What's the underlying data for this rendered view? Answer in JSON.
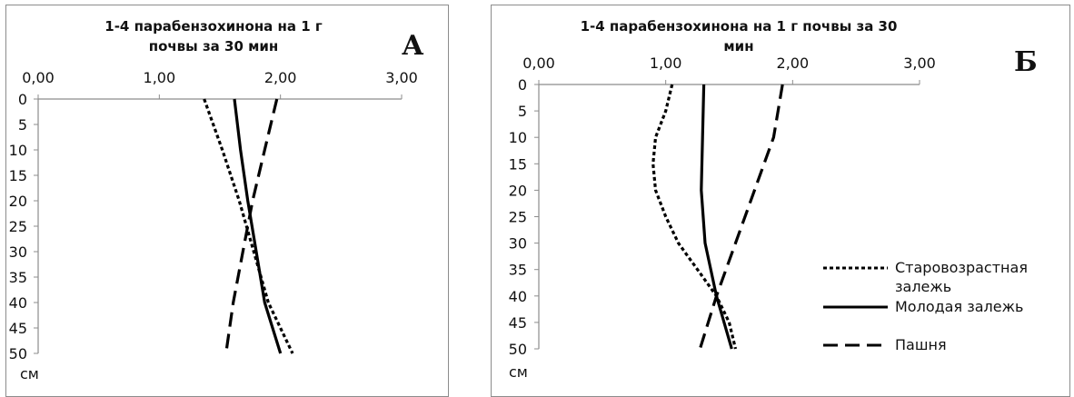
{
  "chart_data": [
    {
      "type": "line",
      "panel_label": "А",
      "title": "1-4 парабензохинона на 1 г почвы за 30 мин",
      "title_lines": [
        "1-4 парабензохинона на 1 г",
        "почвы за 30 мин"
      ],
      "x_axis": {
        "position": "top",
        "ticks": [
          "0,00",
          "1,00",
          "2,00",
          "3,00"
        ],
        "range": [
          0,
          3
        ]
      },
      "y_axis": {
        "inverted": true,
        "ticks": [
          "0",
          "5",
          "10",
          "15",
          "20",
          "25",
          "30",
          "35",
          "40",
          "45",
          "50"
        ],
        "range": [
          0,
          50
        ],
        "label": "см"
      },
      "series": [
        {
          "key": "old",
          "dash": "dotted",
          "points": [
            [
              1.37,
              0
            ],
            [
              1.52,
              10
            ],
            [
              1.66,
              20
            ],
            [
              1.78,
              30
            ],
            [
              1.9,
              40
            ],
            [
              2.1,
              50
            ]
          ]
        },
        {
          "key": "young",
          "dash": "solid",
          "points": [
            [
              1.62,
              0
            ],
            [
              1.67,
              10
            ],
            [
              1.73,
              20
            ],
            [
              1.8,
              30
            ],
            [
              1.87,
              40
            ],
            [
              2.0,
              50
            ]
          ]
        },
        {
          "key": "field",
          "dash": "dashed",
          "points": [
            [
              1.97,
              0
            ],
            [
              1.87,
              10
            ],
            [
              1.77,
              20
            ],
            [
              1.69,
              30
            ],
            [
              1.61,
              40
            ],
            [
              1.55,
              50
            ]
          ]
        }
      ]
    },
    {
      "type": "line",
      "panel_label": "Б",
      "title": "1-4 парабензохинона на 1 г почвы за 30 мин",
      "title_lines": [
        "1-4 парабензохинона на 1 г почвы за 30",
        "мин"
      ],
      "x_axis": {
        "position": "top",
        "ticks": [
          "0,00",
          "1,00",
          "2,00",
          "3,00"
        ],
        "range": [
          0,
          3
        ]
      },
      "y_axis": {
        "inverted": true,
        "ticks": [
          "0",
          "5",
          "10",
          "15",
          "20",
          "25",
          "30",
          "35",
          "40",
          "45",
          "50"
        ],
        "range": [
          0,
          50
        ],
        "label": "см"
      },
      "legend": {
        "placement": "right",
        "items": [
          {
            "key": "old",
            "dash": "dotted",
            "lines": [
              "Старовозрастная",
              "залежь"
            ]
          },
          {
            "key": "young",
            "dash": "solid",
            "lines": [
              "Молодая залежь"
            ]
          },
          {
            "key": "field",
            "dash": "dashed",
            "lines": [
              "Пашня"
            ]
          }
        ]
      },
      "series": [
        {
          "key": "old",
          "name": "Старовозрастная залежь",
          "dash": "dotted",
          "points": [
            [
              1.05,
              0
            ],
            [
              1.0,
              5
            ],
            [
              0.92,
              10
            ],
            [
              0.9,
              15
            ],
            [
              0.92,
              20
            ],
            [
              1.0,
              25
            ],
            [
              1.1,
              30
            ],
            [
              1.25,
              35
            ],
            [
              1.4,
              40
            ],
            [
              1.5,
              45
            ],
            [
              1.55,
              50
            ]
          ]
        },
        {
          "key": "young",
          "name": "Молодая залежь",
          "dash": "solid",
          "points": [
            [
              1.3,
              0
            ],
            [
              1.29,
              10
            ],
            [
              1.28,
              20
            ],
            [
              1.31,
              30
            ],
            [
              1.4,
              40
            ],
            [
              1.52,
              50
            ]
          ]
        },
        {
          "key": "field",
          "name": "Пашня",
          "dash": "dashed",
          "points": [
            [
              1.92,
              0
            ],
            [
              1.85,
              10
            ],
            [
              1.7,
              20
            ],
            [
              1.55,
              30
            ],
            [
              1.4,
              40
            ],
            [
              1.27,
              50
            ]
          ]
        }
      ]
    }
  ]
}
